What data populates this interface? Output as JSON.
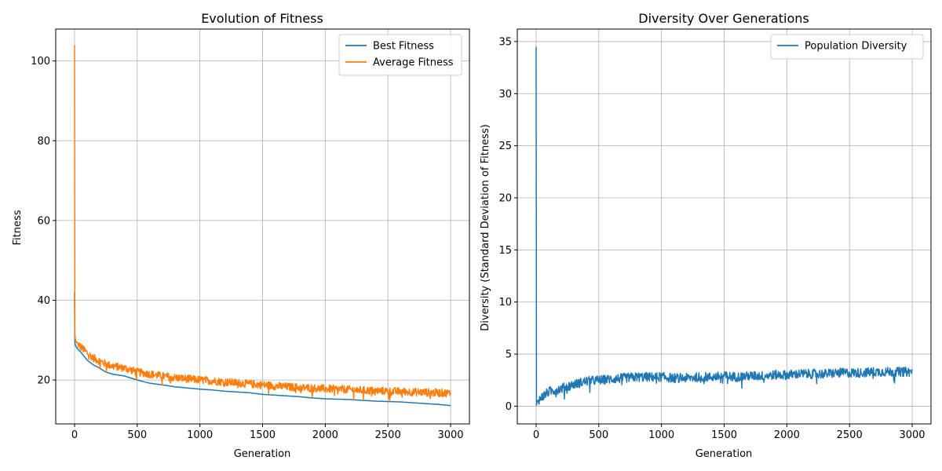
{
  "chart_data": [
    {
      "type": "line",
      "title": "Evolution of Fitness",
      "xlabel": "Generation",
      "ylabel": "Fitness",
      "xlim": [
        -150,
        3150
      ],
      "ylim": [
        9,
        108
      ],
      "xticks": [
        0,
        500,
        1000,
        1500,
        2000,
        2500,
        3000
      ],
      "yticks": [
        20,
        40,
        60,
        80,
        100
      ],
      "grid": true,
      "legend_position": "upper right",
      "series": [
        {
          "name": "Best Fitness",
          "color": "#1f77b4",
          "x": [
            0,
            2,
            5,
            10,
            20,
            50,
            100,
            150,
            200,
            250,
            300,
            400,
            500,
            600,
            700,
            800,
            900,
            1000,
            1100,
            1200,
            1300,
            1400,
            1500,
            1600,
            1700,
            1800,
            1900,
            2000,
            2100,
            2200,
            2300,
            2400,
            2500,
            2600,
            2700,
            2800,
            2900,
            3000
          ],
          "y": [
            42,
            30,
            29,
            28.5,
            28.0,
            27.0,
            25.0,
            23.8,
            23.0,
            22.0,
            21.5,
            21.0,
            20.0,
            19.2,
            18.8,
            18.3,
            18.0,
            17.7,
            17.5,
            17.2,
            17.0,
            16.8,
            16.4,
            16.2,
            16.0,
            15.8,
            15.5,
            15.3,
            15.2,
            15.1,
            14.9,
            14.7,
            14.6,
            14.5,
            14.3,
            14.1,
            13.9,
            13.6
          ]
        },
        {
          "name": "Average Fitness",
          "color": "#ff7f0e",
          "x": [
            0,
            2,
            5,
            10,
            20,
            50,
            100,
            150,
            200,
            250,
            300,
            400,
            500,
            600,
            700,
            800,
            900,
            1000,
            1100,
            1200,
            1300,
            1400,
            1500,
            1600,
            1700,
            1800,
            1900,
            2000,
            2100,
            2200,
            2300,
            2400,
            2500,
            2600,
            2700,
            2800,
            2900,
            3000
          ],
          "y": [
            104,
            32,
            30.5,
            29.8,
            29.2,
            28.3,
            26.8,
            25.5,
            24.8,
            24.0,
            23.5,
            23.0,
            22.0,
            21.5,
            21.0,
            20.6,
            20.3,
            20.0,
            19.8,
            19.5,
            19.3,
            19.0,
            18.8,
            18.5,
            18.3,
            18.1,
            18.0,
            17.8,
            17.7,
            17.6,
            17.4,
            17.3,
            17.2,
            17.1,
            17.0,
            16.9,
            16.8,
            16.7
          ],
          "noise_amplitude": 1.0
        }
      ]
    },
    {
      "type": "line",
      "title": "Diversity Over Generations",
      "xlabel": "Generation",
      "ylabel": "Diversity (Standard Deviation of Fitness)",
      "xlim": [
        -150,
        3150
      ],
      "ylim": [
        -1.7,
        36.2
      ],
      "xticks": [
        0,
        500,
        1000,
        1500,
        2000,
        2500,
        3000
      ],
      "yticks": [
        0,
        5,
        10,
        15,
        20,
        25,
        30,
        35
      ],
      "grid": true,
      "legend_position": "upper right",
      "series": [
        {
          "name": "Population Diversity",
          "color": "#1f77b4",
          "x": [
            0,
            3,
            6,
            10,
            30,
            60,
            100,
            200,
            300,
            400,
            500,
            600,
            700,
            800,
            900,
            1000,
            1100,
            1200,
            1300,
            1400,
            1500,
            1600,
            1700,
            1800,
            1900,
            2000,
            2100,
            2200,
            2300,
            2400,
            2500,
            2600,
            2700,
            2800,
            2900,
            3000
          ],
          "y": [
            34.5,
            0.1,
            0.3,
            0.5,
            0.7,
            1.0,
            1.4,
            1.7,
            2.1,
            2.4,
            2.5,
            2.6,
            2.7,
            2.8,
            2.8,
            2.8,
            2.7,
            2.7,
            2.8,
            2.8,
            2.9,
            2.8,
            2.9,
            2.9,
            3.0,
            3.0,
            3.1,
            3.1,
            3.1,
            3.2,
            3.2,
            3.2,
            3.3,
            3.3,
            3.3,
            3.3
          ],
          "noise_amplitude": 0.45
        }
      ]
    }
  ]
}
